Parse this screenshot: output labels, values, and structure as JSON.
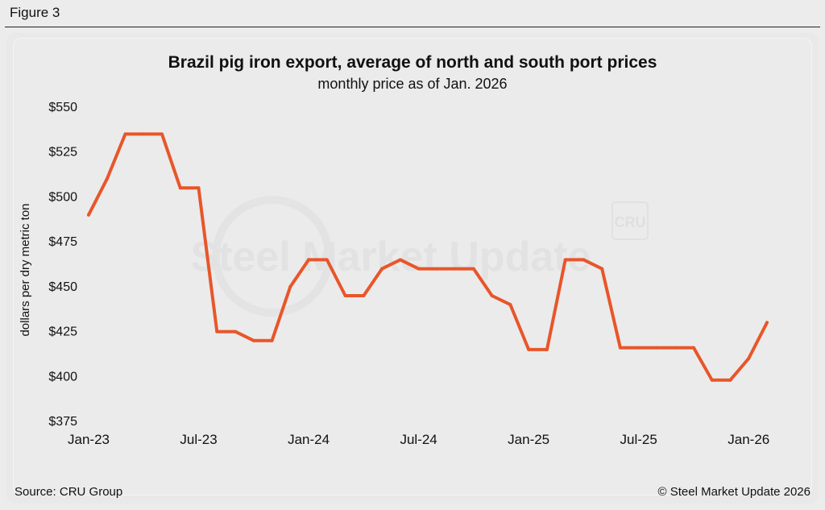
{
  "figure_label": "Figure 3",
  "source": "Source: CRU Group",
  "copyright": "© Steel Market Update 2026",
  "watermark": {
    "text": "Steel Market Update",
    "logo": "CRU"
  },
  "colors": {
    "line": "#e8562a",
    "text": "#111111"
  },
  "chart_data": {
    "type": "line",
    "title": "Brazil pig iron export, average of north and south port prices",
    "subtitle": "monthly price as of Jan. 2026",
    "xlabel": "",
    "ylabel": "dollars per dry metric ton",
    "ylim": [
      375,
      550
    ],
    "yticks": [
      375,
      400,
      425,
      450,
      475,
      500,
      525,
      550
    ],
    "ytick_labels": [
      "$375",
      "$400",
      "$425",
      "$450",
      "$475",
      "$500",
      "$525",
      "$550"
    ],
    "xtick_labels": [
      "Jan-23",
      "Jul-23",
      "Jan-24",
      "Jul-24",
      "Jan-25",
      "Jul-25",
      "Jan-26"
    ],
    "xtick_index": [
      0,
      6,
      12,
      18,
      24,
      30,
      36
    ],
    "grid": false,
    "series": [
      {
        "name": "Brazil pig iron export price",
        "points": [
          [
            0,
            490
          ],
          [
            1,
            510
          ],
          [
            2,
            535
          ],
          [
            3,
            535
          ],
          [
            4,
            535
          ],
          [
            5,
            505
          ],
          [
            6,
            505
          ],
          [
            7,
            425
          ],
          [
            8,
            425
          ],
          [
            9,
            420
          ],
          [
            10,
            420
          ],
          [
            11,
            450
          ],
          [
            12,
            465
          ],
          [
            13,
            465
          ],
          [
            14,
            445
          ],
          [
            15,
            445
          ],
          [
            16,
            460
          ],
          [
            17,
            465
          ],
          [
            18,
            460
          ],
          [
            19,
            460
          ],
          [
            20,
            460
          ],
          [
            21,
            460
          ],
          [
            22,
            445
          ],
          [
            23,
            440
          ],
          [
            24,
            415
          ],
          [
            25,
            415
          ],
          [
            26,
            465
          ],
          [
            27,
            465
          ],
          [
            28,
            460
          ],
          [
            29,
            416
          ],
          [
            30,
            416
          ],
          [
            31,
            416
          ],
          [
            32,
            416
          ],
          [
            33,
            416
          ],
          [
            34,
            398
          ],
          [
            35,
            398
          ],
          [
            36,
            410
          ],
          [
            37,
            430
          ]
        ]
      }
    ]
  }
}
